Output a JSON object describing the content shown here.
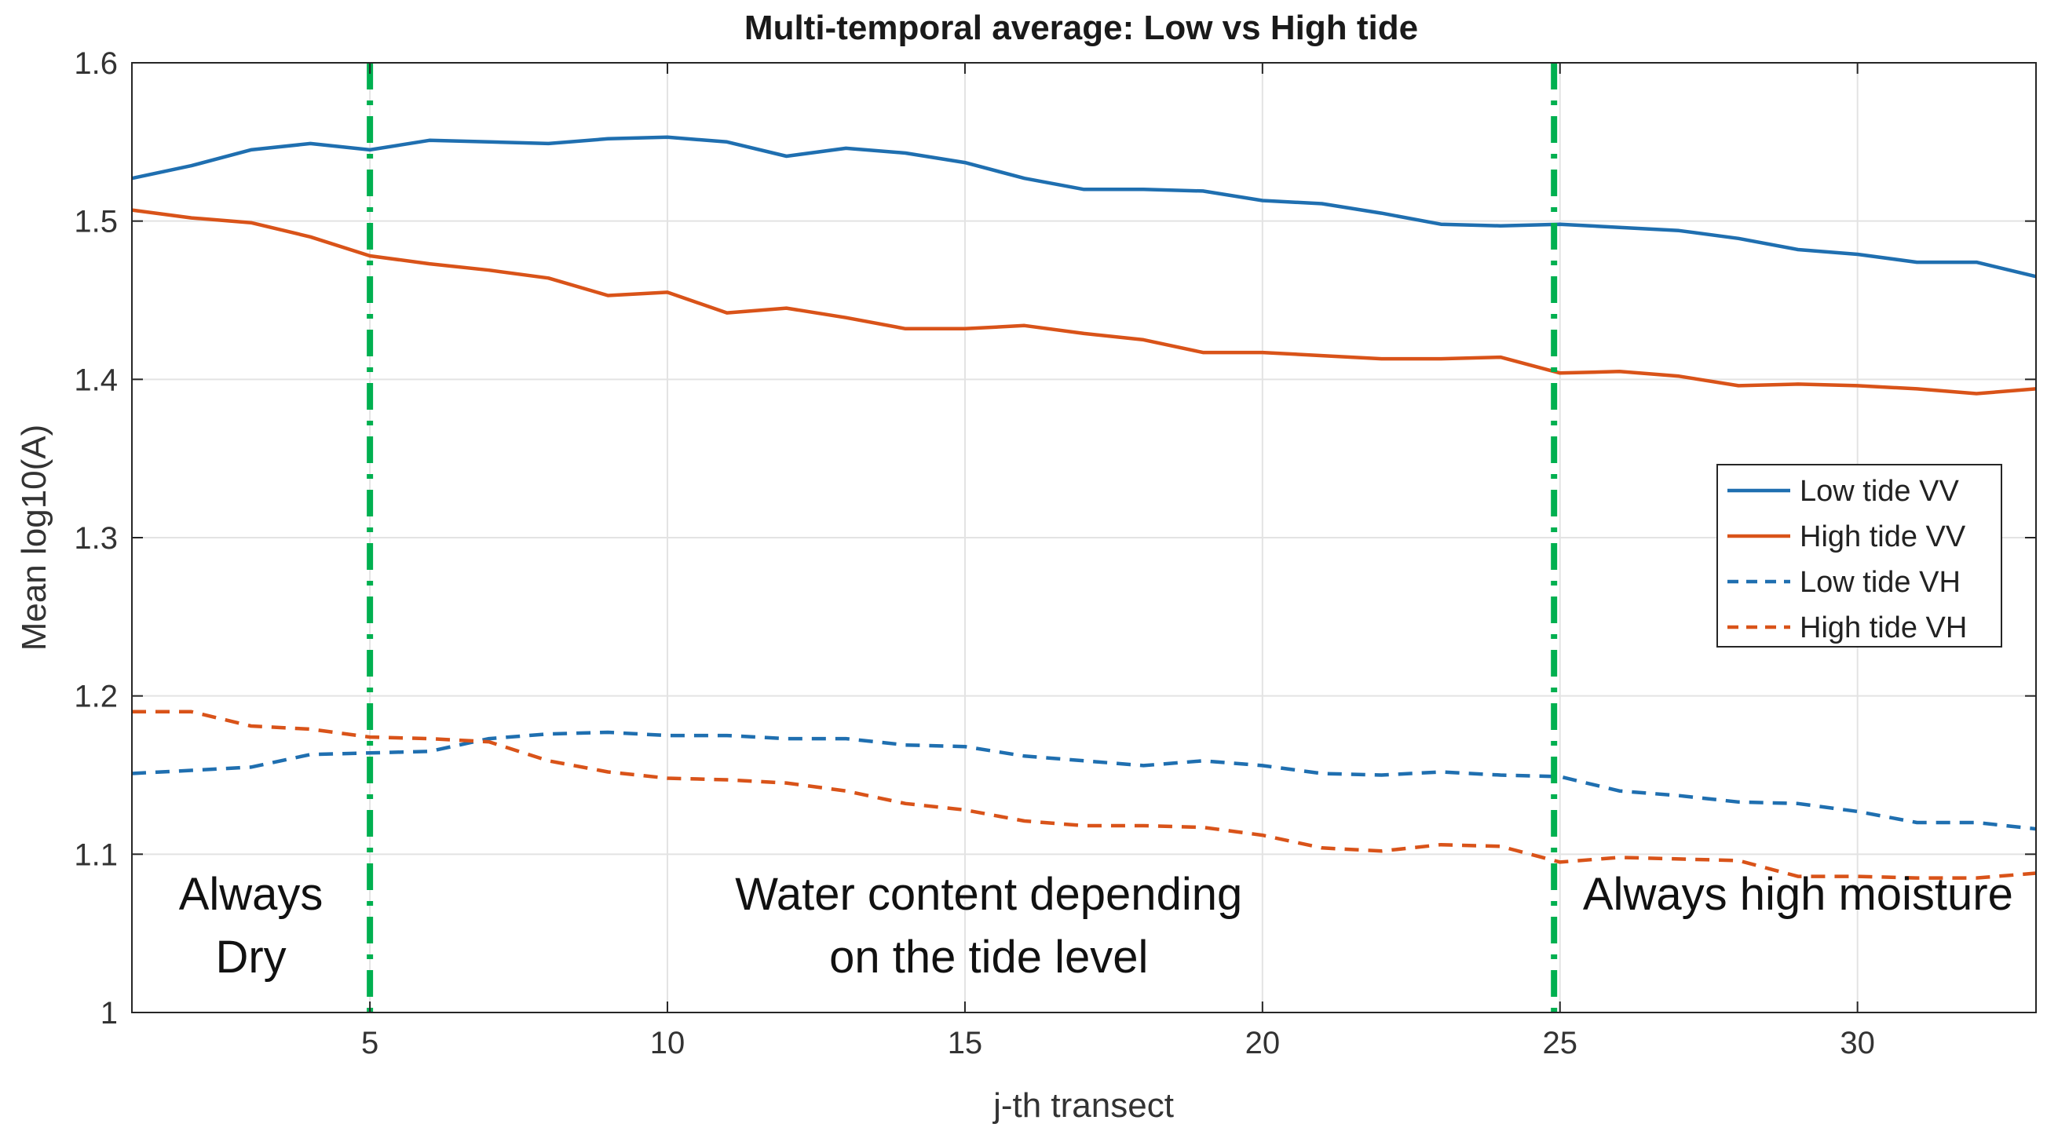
{
  "chart_data": {
    "type": "line",
    "title": "Multi-temporal average: Low vs High tide",
    "xlabel": "j-th transect",
    "ylabel": "Mean log10(A)",
    "xlim": [
      1,
      33
    ],
    "ylim": [
      1,
      1.6
    ],
    "xticks": [
      5,
      10,
      15,
      20,
      25,
      30
    ],
    "yticks": [
      1,
      1.1,
      1.2,
      1.3,
      1.4,
      1.5,
      1.6
    ],
    "ytick_labels": [
      "1",
      "1.1",
      "1.2",
      "1.3",
      "1.4",
      "1.5",
      "1.6"
    ],
    "grid": true,
    "legend_position": "right",
    "x": [
      1,
      2,
      3,
      4,
      5,
      6,
      7,
      8,
      9,
      10,
      11,
      12,
      13,
      14,
      15,
      16,
      17,
      18,
      19,
      20,
      21,
      22,
      23,
      24,
      25,
      26,
      27,
      28,
      29,
      30,
      31,
      32,
      33
    ],
    "series": [
      {
        "name": "Low tide VV",
        "color": "#1f6fb0",
        "style": "solid",
        "values": [
          1.527,
          1.535,
          1.545,
          1.549,
          1.545,
          1.551,
          1.55,
          1.549,
          1.552,
          1.553,
          1.55,
          1.541,
          1.546,
          1.543,
          1.537,
          1.527,
          1.52,
          1.52,
          1.519,
          1.513,
          1.511,
          1.505,
          1.498,
          1.497,
          1.498,
          1.496,
          1.494,
          1.489,
          1.482,
          1.479,
          1.474,
          1.474,
          1.465
        ]
      },
      {
        "name": "High tide VV",
        "color": "#d95319",
        "style": "solid",
        "values": [
          1.507,
          1.502,
          1.499,
          1.49,
          1.478,
          1.473,
          1.469,
          1.464,
          1.453,
          1.455,
          1.442,
          1.445,
          1.439,
          1.432,
          1.432,
          1.434,
          1.429,
          1.425,
          1.417,
          1.417,
          1.415,
          1.413,
          1.413,
          1.414,
          1.404,
          1.405,
          1.402,
          1.396,
          1.397,
          1.396,
          1.394,
          1.391,
          1.394
        ]
      },
      {
        "name": "Low tide VH",
        "color": "#1f6fb0",
        "style": "dashed",
        "values": [
          1.151,
          1.153,
          1.155,
          1.163,
          1.164,
          1.165,
          1.173,
          1.176,
          1.177,
          1.175,
          1.175,
          1.173,
          1.173,
          1.169,
          1.168,
          1.162,
          1.159,
          1.156,
          1.159,
          1.156,
          1.151,
          1.15,
          1.152,
          1.15,
          1.149,
          1.14,
          1.137,
          1.133,
          1.132,
          1.127,
          1.12,
          1.12,
          1.116
        ]
      },
      {
        "name": "High tide VH",
        "color": "#d95319",
        "style": "dashed",
        "values": [
          1.19,
          1.19,
          1.181,
          1.179,
          1.174,
          1.173,
          1.171,
          1.159,
          1.152,
          1.148,
          1.147,
          1.145,
          1.14,
          1.132,
          1.128,
          1.121,
          1.118,
          1.118,
          1.117,
          1.112,
          1.104,
          1.102,
          1.106,
          1.105,
          1.095,
          1.098,
          1.097,
          1.096,
          1.086,
          1.086,
          1.085,
          1.085,
          1.088
        ]
      }
    ],
    "vlines": [
      {
        "x": 5,
        "color": "#00b050",
        "style": "dash-dot"
      },
      {
        "x": 24.9,
        "color": "#00b050",
        "style": "dash-dot"
      }
    ],
    "annotations": [
      {
        "name": "always-dry",
        "lines": [
          "Always",
          "Dry"
        ],
        "x": 3,
        "y": 1.065
      },
      {
        "name": "water-content",
        "lines": [
          "Water content depending",
          "on the tide level"
        ],
        "x": 15.4,
        "y": 1.065
      },
      {
        "name": "always-high-moisture",
        "lines": [
          "Always high moisture"
        ],
        "x": 29.0,
        "y": 1.065
      }
    ]
  }
}
